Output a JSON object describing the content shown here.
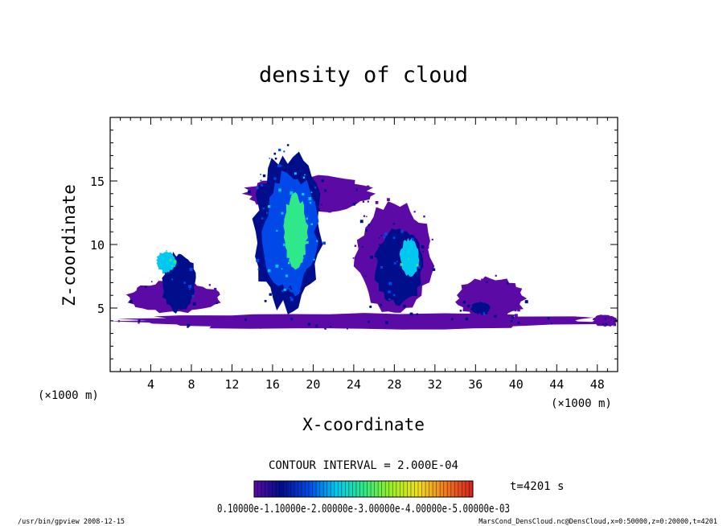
{
  "chart_data": {
    "type": "heatmap",
    "title": "density of cloud",
    "xlabel": "X-coordinate",
    "ylabel": "Z-coordinate",
    "x_unit": "(×1000 m)",
    "y_unit": "(×1000 m)",
    "xlim": [
      0,
      50
    ],
    "ylim": [
      0,
      20
    ],
    "x_ticks": [
      4,
      8,
      12,
      16,
      20,
      24,
      28,
      32,
      36,
      40,
      44,
      48
    ],
    "y_ticks": [
      5,
      10,
      15
    ],
    "contour_interval_text": "CONTOUR INTERVAL = 2.000E-04",
    "time_text": "t=4201 s",
    "colorbar_labels_text": "0.10000e-1.10000e-2.00000e-3.00000e-4.00000e-5.00000e-03",
    "colorbar_ticks": [
      0.0001,
      0.0002,
      0.0003,
      0.0004,
      0.0005
    ],
    "colormap": [
      "#5b0aa6",
      "#000e8c",
      "#0049e8",
      "#00c8f0",
      "#2ee88a",
      "#9af020",
      "#f0e020",
      "#f07a20",
      "#d82020"
    ],
    "footer_left": "/usr/bin/gpview   2008-12-15",
    "footer_right": "MarsCond_DensCloud.nc@DensCloud,x=0:50000,z=0:20000,t=4201",
    "clouds": [
      {
        "x_range": [
          0,
          50
        ],
        "z_range": [
          3.3,
          4.6
        ],
        "level": 0.0001
      },
      {
        "x_range": [
          1.5,
          11
        ],
        "z_range": [
          4.5,
          7.2
        ],
        "level": 0.0001
      },
      {
        "x_range": [
          5,
          8.5
        ],
        "z_range": [
          4.5,
          9.5
        ],
        "level": 0.0002
      },
      {
        "x_range": [
          4.5,
          6.5
        ],
        "z_range": [
          7.8,
          9.5
        ],
        "level": 0.0004
      },
      {
        "x_range": [
          13,
          26
        ],
        "z_range": [
          12.5,
          15.5
        ],
        "level": 0.0001
      },
      {
        "x_range": [
          14,
          21
        ],
        "z_range": [
          4.5,
          17.5
        ],
        "level": 0.0002
      },
      {
        "x_range": [
          15,
          20.5
        ],
        "z_range": [
          6,
          16
        ],
        "level": 0.0003
      },
      {
        "x_range": [
          17,
          19.5
        ],
        "z_range": [
          8,
          14
        ],
        "level": 0.0005
      },
      {
        "x_range": [
          24,
          32
        ],
        "z_range": [
          4.5,
          13.5
        ],
        "level": 0.0001
      },
      {
        "x_range": [
          26,
          31
        ],
        "z_range": [
          5,
          11.5
        ],
        "level": 0.0002
      },
      {
        "x_range": [
          28.5,
          30.5
        ],
        "z_range": [
          7.5,
          10.5
        ],
        "level": 0.0004
      },
      {
        "x_range": [
          34,
          41
        ],
        "z_range": [
          4,
          7.5
        ],
        "level": 0.0001
      },
      {
        "x_range": [
          35.5,
          37.5
        ],
        "z_range": [
          4.5,
          5.5
        ],
        "level": 0.0002
      },
      {
        "x_range": [
          47.5,
          50
        ],
        "z_range": [
          3.5,
          4.5
        ],
        "level": 0.0001
      }
    ]
  }
}
